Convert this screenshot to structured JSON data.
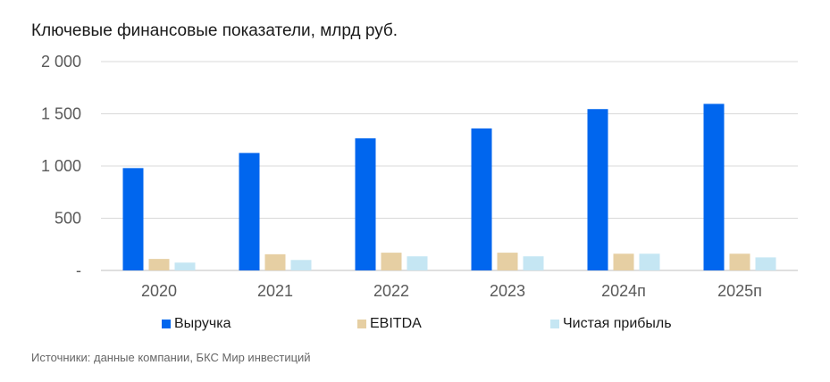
{
  "title": "Ключевые финансовые показатели, млрд руб.",
  "source": "Источники: данные компании, БКС Мир инвестиций",
  "colors": {
    "revenue": "#0066ee",
    "ebitda": "#e6cfa3",
    "net_income": "#c5e6f3",
    "grid": "#d9d9d9",
    "axis": "#bfbfbf"
  },
  "chart_data": {
    "type": "bar",
    "categories": [
      "2020",
      "2021",
      "2022",
      "2023",
      "2024п",
      "2025п"
    ],
    "series": [
      {
        "name": "Выручка",
        "values": [
          980,
          1125,
          1265,
          1360,
          1545,
          1595
        ]
      },
      {
        "name": "EBITDA",
        "values": [
          110,
          155,
          170,
          170,
          160,
          160
        ]
      },
      {
        "name": "Чистая прибыль",
        "values": [
          75,
          100,
          135,
          135,
          160,
          125
        ]
      }
    ],
    "ylim": [
      0,
      2000
    ],
    "yticks": [
      0,
      500,
      1000,
      1500,
      2000
    ],
    "ytick_labels": [
      "-",
      "500",
      "1 000",
      "1 500",
      "2 000"
    ],
    "grid": true,
    "legend": "bottom"
  }
}
